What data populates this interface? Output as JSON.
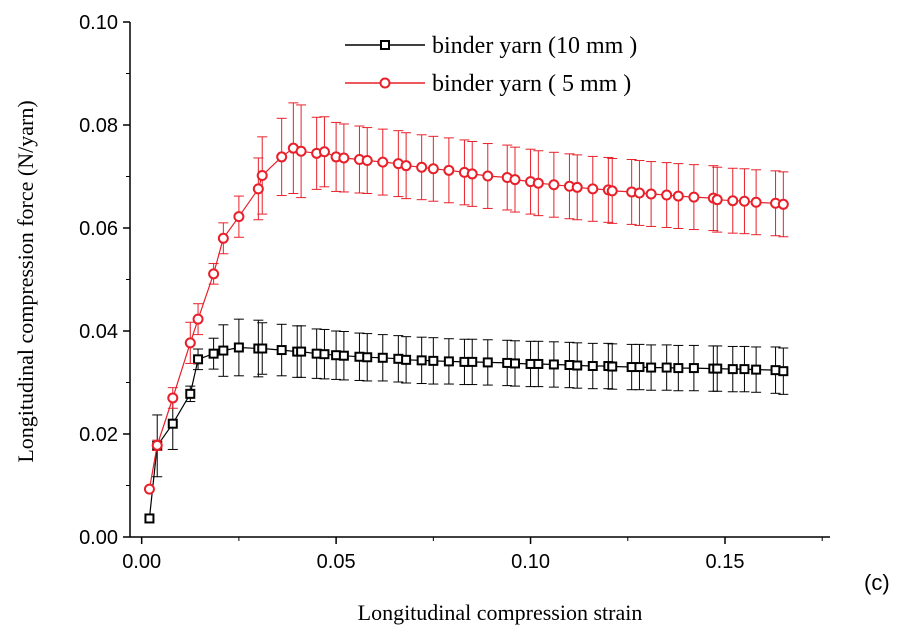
{
  "panel_label": "(c)",
  "chart_data": {
    "type": "line",
    "xlabel": "Longitudinal compression strain",
    "ylabel": "Longitudinal compression force (N/yarn)",
    "xlim": [
      -0.003,
      0.177
    ],
    "ylim": [
      0.0,
      0.1
    ],
    "x_ticks": [
      "0.00",
      "0.05",
      "0.10",
      "0.15"
    ],
    "y_ticks": [
      "0.00",
      "0.02",
      "0.04",
      "0.06",
      "0.08",
      "0.10"
    ],
    "legend_position": "top-right",
    "series": [
      {
        "name": "binder yarn (10 mm )",
        "color": "#000000",
        "marker": "square",
        "x": [
          0.002,
          0.004,
          0.008,
          0.0125,
          0.0145,
          0.0185,
          0.021,
          0.025,
          0.03,
          0.031,
          0.036,
          0.04,
          0.041,
          0.045,
          0.047,
          0.05,
          0.052,
          0.056,
          0.058,
          0.062,
          0.066,
          0.068,
          0.072,
          0.075,
          0.079,
          0.083,
          0.085,
          0.089,
          0.094,
          0.096,
          0.1,
          0.102,
          0.106,
          0.11,
          0.112,
          0.116,
          0.12,
          0.121,
          0.126,
          0.128,
          0.131,
          0.135,
          0.138,
          0.142,
          0.147,
          0.148,
          0.152,
          0.155,
          0.158,
          0.163,
          0.165
        ],
        "y": [
          0.0036,
          0.0177,
          0.022,
          0.0278,
          0.0345,
          0.0356,
          0.0362,
          0.0368,
          0.0366,
          0.0366,
          0.0363,
          0.036,
          0.036,
          0.0356,
          0.0355,
          0.0353,
          0.0352,
          0.035,
          0.0349,
          0.0348,
          0.0346,
          0.0344,
          0.0343,
          0.0342,
          0.0341,
          0.034,
          0.034,
          0.0339,
          0.0338,
          0.0337,
          0.0336,
          0.0336,
          0.0335,
          0.0334,
          0.0333,
          0.0332,
          0.0332,
          0.0331,
          0.033,
          0.033,
          0.0329,
          0.0329,
          0.0328,
          0.0328,
          0.0327,
          0.0327,
          0.0326,
          0.0326,
          0.0325,
          0.0324,
          0.0322
        ],
        "error": [
          0.0,
          0.006,
          0.005,
          0.0015,
          0.002,
          0.003,
          0.005,
          0.0055,
          0.0055,
          0.005,
          0.005,
          0.005,
          0.005,
          0.0048,
          0.0048,
          0.0047,
          0.0047,
          0.0046,
          0.0046,
          0.0045,
          0.0045,
          0.0045,
          0.0045,
          0.0045,
          0.0044,
          0.0044,
          0.0044,
          0.0044,
          0.0044,
          0.0044,
          0.0044,
          0.0044,
          0.0044,
          0.0044,
          0.0044,
          0.0044,
          0.0044,
          0.0044,
          0.0044,
          0.0044,
          0.0044,
          0.0044,
          0.0044,
          0.0044,
          0.0044,
          0.0044,
          0.0044,
          0.0044,
          0.0044,
          0.0045,
          0.0045
        ]
      },
      {
        "name": "binder yarn ( 5 mm )",
        "color": "#e8202a",
        "marker": "circle",
        "x": [
          0.002,
          0.004,
          0.008,
          0.0125,
          0.0145,
          0.0185,
          0.021,
          0.025,
          0.03,
          0.031,
          0.036,
          0.039,
          0.041,
          0.045,
          0.047,
          0.05,
          0.052,
          0.056,
          0.058,
          0.062,
          0.066,
          0.068,
          0.072,
          0.075,
          0.079,
          0.083,
          0.085,
          0.089,
          0.094,
          0.096,
          0.1,
          0.102,
          0.106,
          0.11,
          0.112,
          0.116,
          0.12,
          0.121,
          0.126,
          0.128,
          0.131,
          0.135,
          0.138,
          0.142,
          0.147,
          0.148,
          0.152,
          0.155,
          0.158,
          0.163,
          0.165
        ],
        "y": [
          0.0093,
          0.0178,
          0.027,
          0.0377,
          0.0423,
          0.0511,
          0.058,
          0.0622,
          0.0676,
          0.0702,
          0.0738,
          0.0755,
          0.0749,
          0.0745,
          0.0748,
          0.0738,
          0.0736,
          0.0733,
          0.0731,
          0.0728,
          0.0725,
          0.0721,
          0.0718,
          0.0715,
          0.0712,
          0.0708,
          0.0705,
          0.0701,
          0.0698,
          0.0694,
          0.069,
          0.0687,
          0.0684,
          0.0681,
          0.0679,
          0.0676,
          0.0674,
          0.0672,
          0.067,
          0.0668,
          0.0666,
          0.0664,
          0.0662,
          0.066,
          0.0658,
          0.0655,
          0.0653,
          0.0652,
          0.065,
          0.0648,
          0.0646
        ],
        "error": [
          0.0,
          0.001,
          0.002,
          0.004,
          0.003,
          0.002,
          0.003,
          0.004,
          0.006,
          0.0075,
          0.0075,
          0.0088,
          0.009,
          0.007,
          0.0068,
          0.0067,
          0.0066,
          0.0065,
          0.0064,
          0.0064,
          0.0064,
          0.0064,
          0.0063,
          0.0063,
          0.0063,
          0.0063,
          0.0063,
          0.0063,
          0.0063,
          0.0063,
          0.0063,
          0.0063,
          0.0063,
          0.0063,
          0.0063,
          0.0063,
          0.0063,
          0.0063,
          0.0063,
          0.0063,
          0.0063,
          0.0063,
          0.0063,
          0.0063,
          0.0063,
          0.0063,
          0.0063,
          0.0063,
          0.0063,
          0.0063,
          0.0063
        ]
      }
    ]
  }
}
